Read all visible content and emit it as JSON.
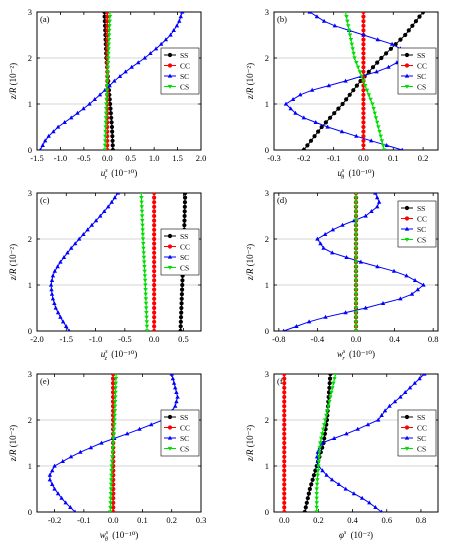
{
  "colors": {
    "SS": "#000000",
    "CC": "#ff0000",
    "SC": "#0000ff",
    "CS": "#00dd00"
  },
  "chart_data": [
    {
      "panel": "(a)",
      "type": "line",
      "xlabel": "u_r^s (10^-10)",
      "xlabel_main": "u",
      "xlabel_sub": "r",
      "xlabel_sup": "s",
      "xlabel_unit": "(10⁻¹⁰)",
      "ylabel": "z/R (10^-2)",
      "ylabel_main": "z/R",
      "ylabel_unit": "(10⁻²)",
      "xlim": [
        -1.5,
        2.0
      ],
      "ylim": [
        0,
        3
      ],
      "xticks": [
        -1.5,
        -1.0,
        -0.5,
        0.0,
        0.5,
        1.0,
        1.5,
        2.0
      ],
      "xtick_labels": [
        "-1.5",
        "-1.0",
        "-0.5",
        "0.0",
        "0.5",
        "1.0",
        "1.5",
        "2.0"
      ],
      "yticks": [
        0,
        1,
        2,
        3
      ],
      "ytick_labels": [
        "0",
        "1",
        "2",
        "3"
      ],
      "legend": [
        "SS",
        "CC",
        "SC",
        "CS"
      ],
      "legend_position": "right-middle",
      "series": [
        {
          "name": "SS",
          "z": [
            0,
            0.5,
            1,
            1.5,
            2,
            2.5,
            3
          ],
          "x": [
            0.12,
            0.1,
            0.06,
            0.02,
            -0.02,
            -0.04,
            -0.06
          ]
        },
        {
          "name": "CC",
          "z": [
            0,
            3
          ],
          "x": [
            0.0,
            0.0
          ]
        },
        {
          "name": "SC",
          "z": [
            0,
            0.25,
            0.5,
            0.75,
            1,
            1.25,
            1.5,
            1.75,
            2,
            2.25,
            2.5,
            2.75,
            3
          ],
          "x": [
            -1.43,
            -1.3,
            -1.05,
            -0.7,
            -0.38,
            -0.1,
            0.15,
            0.45,
            0.8,
            1.1,
            1.35,
            1.52,
            1.6
          ]
        },
        {
          "name": "CS",
          "z": [
            0,
            1,
            2,
            3
          ],
          "x": [
            -0.05,
            -0.02,
            0.02,
            0.06
          ]
        }
      ]
    },
    {
      "panel": "(b)",
      "type": "line",
      "xlabel": "u_theta^s (10^-10)",
      "xlabel_main": "u",
      "xlabel_sub": "θ",
      "xlabel_sup": "s",
      "xlabel_unit": "(10⁻¹⁰)",
      "ylabel": "z/R (10^-2)",
      "ylabel_main": "z/R",
      "ylabel_unit": "(10⁻²)",
      "xlim": [
        -0.3,
        0.25
      ],
      "ylim": [
        0,
        3
      ],
      "xticks": [
        -0.3,
        -0.2,
        -0.1,
        0.0,
        0.1,
        0.2
      ],
      "xtick_labels": [
        "-0.3",
        "-0.2",
        "-0.1",
        "0.0",
        "0.1",
        "0.2"
      ],
      "yticks": [
        0,
        1,
        2,
        3
      ],
      "ytick_labels": [
        "0",
        "1",
        "2",
        "3"
      ],
      "legend": [
        "SS",
        "CC",
        "SC",
        "CS"
      ],
      "legend_position": "right-middle",
      "series": [
        {
          "name": "SS",
          "z": [
            0,
            0.5,
            1,
            1.5,
            2,
            2.5,
            3
          ],
          "x": [
            -0.2,
            -0.14,
            -0.07,
            -0.01,
            0.06,
            0.14,
            0.2
          ]
        },
        {
          "name": "CC",
          "z": [
            0,
            3
          ],
          "x": [
            0.0,
            0.0
          ]
        },
        {
          "name": "SC",
          "z": [
            0,
            0.25,
            0.5,
            0.75,
            1,
            1.25,
            1.5,
            1.75,
            2,
            2.25,
            2.5,
            2.75,
            3
          ],
          "x": [
            0.13,
            0.0,
            -0.12,
            -0.22,
            -0.26,
            -0.2,
            -0.06,
            0.07,
            0.14,
            0.12,
            0.0,
            -0.12,
            -0.18
          ]
        },
        {
          "name": "CS",
          "z": [
            0,
            1,
            2,
            3
          ],
          "x": [
            0.07,
            0.03,
            -0.03,
            -0.06
          ]
        }
      ]
    },
    {
      "panel": "(c)",
      "type": "line",
      "xlabel": "u_z^s (10^-10)",
      "xlabel_main": "u",
      "xlabel_sub": "z",
      "xlabel_sup": "s",
      "xlabel_unit": "(10⁻¹⁰)",
      "ylabel": "z/R (10^-2)",
      "ylabel_main": "z/R",
      "ylabel_unit": "(10⁻²)",
      "xlim": [
        -2.0,
        0.8
      ],
      "ylim": [
        0,
        3
      ],
      "xticks": [
        -2.0,
        -1.5,
        -1.0,
        -0.5,
        0.0,
        0.5
      ],
      "xtick_labels": [
        "-2.0",
        "-1.5",
        "-1.0",
        "-0.5",
        "0.0",
        "0.5"
      ],
      "yticks": [
        0,
        1,
        2,
        3
      ],
      "ytick_labels": [
        "0",
        "1",
        "2",
        "3"
      ],
      "legend": [
        "SS",
        "CC",
        "SC",
        "CS"
      ],
      "legend_position": "right-middle",
      "series": [
        {
          "name": "SS",
          "z": [
            0,
            1,
            2,
            3
          ],
          "x": [
            0.45,
            0.48,
            0.51,
            0.53
          ]
        },
        {
          "name": "CC",
          "z": [
            0,
            3
          ],
          "x": [
            0.0,
            0.0
          ]
        },
        {
          "name": "SC",
          "z": [
            0,
            0.25,
            0.5,
            0.75,
            1,
            1.25,
            1.5,
            1.75,
            2,
            2.25,
            2.5,
            2.75,
            3
          ],
          "x": [
            -1.45,
            -1.58,
            -1.68,
            -1.74,
            -1.76,
            -1.72,
            -1.6,
            -1.45,
            -1.28,
            -1.1,
            -0.92,
            -0.75,
            -0.62
          ]
        },
        {
          "name": "CS",
          "z": [
            0,
            1,
            2,
            3
          ],
          "x": [
            -0.12,
            -0.15,
            -0.19,
            -0.22
          ]
        }
      ]
    },
    {
      "panel": "(d)",
      "type": "line",
      "xlabel": "w_r^s (10^-10)",
      "xlabel_main": "w",
      "xlabel_sub": "r",
      "xlabel_sup": "s",
      "xlabel_unit": "(10⁻¹⁰)",
      "ylabel": "z/R (10^-2)",
      "ylabel_main": "z/R",
      "ylabel_unit": "(10⁻²)",
      "xlim": [
        -0.85,
        0.85
      ],
      "ylim": [
        0,
        3
      ],
      "xticks": [
        -0.8,
        -0.4,
        0.0,
        0.4,
        0.8
      ],
      "xtick_labels": [
        "-0.8",
        "-0.4",
        "0.0",
        "0.4",
        "0.8"
      ],
      "yticks": [
        0,
        1,
        2,
        3
      ],
      "ytick_labels": [
        "0",
        "1",
        "2",
        "3"
      ],
      "legend": [
        "SS",
        "CC",
        "SC",
        "CS"
      ],
      "legend_position": "top-right",
      "series": [
        {
          "name": "SS",
          "z": [
            0,
            3
          ],
          "x": [
            0.0,
            0.0
          ]
        },
        {
          "name": "CC",
          "z": [
            0,
            3
          ],
          "x": [
            0.0,
            0.0
          ]
        },
        {
          "name": "SC",
          "z": [
            0,
            0.25,
            0.5,
            0.75,
            1,
            1.25,
            1.5,
            1.75,
            2,
            2.25,
            2.5,
            2.75,
            3
          ],
          "x": [
            -0.75,
            -0.42,
            0.1,
            0.55,
            0.7,
            0.48,
            0.05,
            -0.32,
            -0.4,
            -0.2,
            0.1,
            0.25,
            0.2
          ]
        },
        {
          "name": "CS",
          "z": [
            0,
            3
          ],
          "x": [
            0.0,
            0.0
          ]
        }
      ]
    },
    {
      "panel": "(e)",
      "type": "line",
      "xlabel": "w_theta^s (10^-10)",
      "xlabel_main": "w",
      "xlabel_sub": "θ",
      "xlabel_sup": "s",
      "xlabel_unit": "(10⁻¹⁰)",
      "ylabel": "z/R (10^-2)",
      "ylabel_main": "z/R",
      "ylabel_unit": "(10⁻²)",
      "xlim": [
        -0.26,
        0.3
      ],
      "ylim": [
        0,
        3
      ],
      "xticks": [
        -0.2,
        -0.1,
        0.0,
        0.1,
        0.2,
        0.3
      ],
      "xtick_labels": [
        "-0.2",
        "-0.1",
        "0.0",
        "0.1",
        "0.2",
        "0.3"
      ],
      "yticks": [
        0,
        1,
        2,
        3
      ],
      "ytick_labels": [
        "0",
        "1",
        "2",
        "3"
      ],
      "legend": [
        "SS",
        "CC",
        "SC",
        "CS"
      ],
      "legend_position": "right-middle",
      "series": [
        {
          "name": "SS",
          "z": [
            0,
            3
          ],
          "x": [
            0.0,
            0.0
          ]
        },
        {
          "name": "CC",
          "z": [
            0,
            3
          ],
          "x": [
            0.0,
            0.0
          ]
        },
        {
          "name": "SC",
          "z": [
            0,
            0.25,
            0.5,
            0.75,
            1,
            1.25,
            1.5,
            1.75,
            2,
            2.25,
            2.5,
            2.75,
            3
          ],
          "x": [
            -0.13,
            -0.17,
            -0.2,
            -0.22,
            -0.2,
            -0.13,
            -0.04,
            0.07,
            0.17,
            0.21,
            0.22,
            0.21,
            0.2
          ]
        },
        {
          "name": "CS",
          "z": [
            0,
            1,
            2,
            3
          ],
          "x": [
            -0.01,
            -0.005,
            0.005,
            0.01
          ]
        }
      ]
    },
    {
      "panel": "(f)",
      "type": "line",
      "xlabel": "phi^s (10^-2)",
      "xlabel_main": "φ",
      "xlabel_sub": "",
      "xlabel_sup": "s",
      "xlabel_unit": "(10⁻²)",
      "ylabel": "z/R (10^-2)",
      "ylabel_main": "z/R",
      "ylabel_unit": "(10⁻²)",
      "xlim": [
        -0.06,
        0.9
      ],
      "ylim": [
        0,
        3
      ],
      "xticks": [
        0.0,
        0.2,
        0.4,
        0.6,
        0.8
      ],
      "xtick_labels": [
        "0.0",
        "0.2",
        "0.4",
        "0.6",
        "0.8"
      ],
      "yticks": [
        0,
        1,
        2,
        3
      ],
      "ytick_labels": [
        "0",
        "1",
        "2",
        "3"
      ],
      "legend": [
        "SS",
        "CC",
        "SC",
        "CS"
      ],
      "legend_position": "right-middle",
      "series": [
        {
          "name": "SS",
          "z": [
            0,
            0.5,
            1,
            1.5,
            2,
            2.5,
            3
          ],
          "x": [
            0.12,
            0.15,
            0.19,
            0.23,
            0.25,
            0.26,
            0.27
          ]
        },
        {
          "name": "CC",
          "z": [
            0,
            3
          ],
          "x": [
            0.0,
            0.0
          ]
        },
        {
          "name": "SC",
          "z": [
            0,
            0.25,
            0.5,
            0.75,
            1,
            1.25,
            1.5,
            1.75,
            2,
            2.25,
            2.5,
            2.75,
            3
          ],
          "x": [
            0.57,
            0.48,
            0.36,
            0.26,
            0.2,
            0.19,
            0.22,
            0.4,
            0.55,
            0.6,
            0.68,
            0.75,
            0.82
          ]
        },
        {
          "name": "CS",
          "z": [
            0,
            0.5,
            1,
            1.5,
            2,
            2.5,
            3
          ],
          "x": [
            0.19,
            0.19,
            0.2,
            0.21,
            0.24,
            0.27,
            0.3
          ]
        }
      ]
    }
  ]
}
